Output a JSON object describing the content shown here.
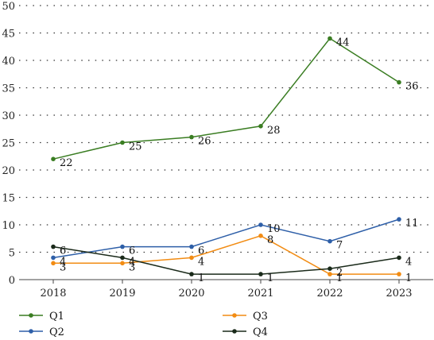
{
  "chart_data": {
    "type": "line",
    "title": "",
    "xlabel": "",
    "ylabel": "",
    "categories": [
      "2018",
      "2019",
      "2020",
      "2021",
      "2022",
      "2023"
    ],
    "ylim": [
      0,
      50
    ],
    "yticks": [
      0,
      5,
      10,
      15,
      20,
      25,
      30,
      35,
      40,
      45,
      50
    ],
    "grid": "horizontal dotted",
    "legend_position": "bottom",
    "series": [
      {
        "name": "Q1",
        "color": "#3a7d22",
        "values": [
          22,
          25,
          26,
          28,
          44,
          36
        ]
      },
      {
        "name": "Q2",
        "color": "#2e5fa8",
        "values": [
          4,
          6,
          6,
          10,
          7,
          11
        ]
      },
      {
        "name": "Q3",
        "color": "#f28c13",
        "values": [
          3,
          3,
          4,
          8,
          1,
          1
        ]
      },
      {
        "name": "Q4",
        "color": "#1a2a1a",
        "values": [
          6,
          4,
          1,
          1,
          2,
          4
        ]
      }
    ]
  }
}
